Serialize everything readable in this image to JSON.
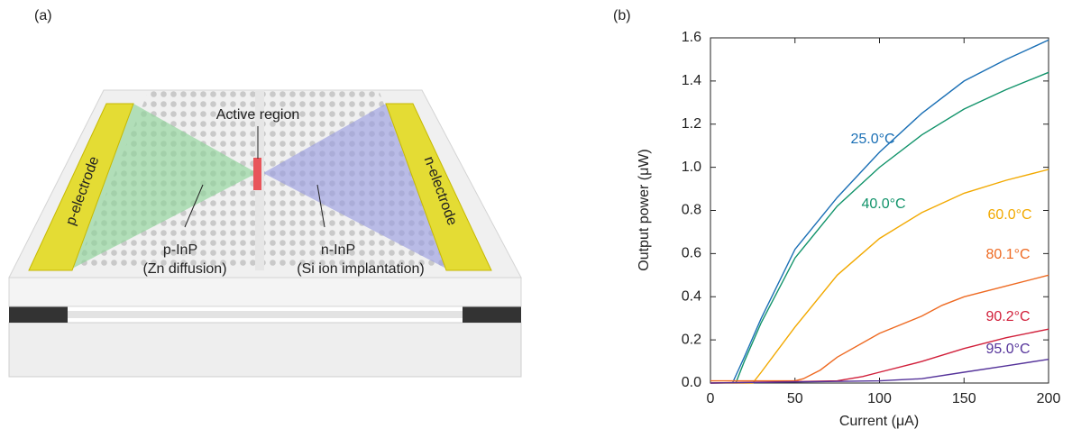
{
  "diagram": {
    "panel_label": "(a)",
    "labels": [
      "Active region",
      "p-electrode",
      "n-electrode",
      "p-InP",
      "(Zn diffusion)",
      "n-InP",
      "(Si ion implantation)"
    ]
  },
  "chart_data": {
    "type": "line",
    "panel_label": "(b)",
    "x_label": "Current (μA)",
    "y_label": "Output power (μW)",
    "xlim": [
      0,
      200
    ],
    "ylim": [
      0,
      1.6
    ],
    "xticks": [
      0,
      50,
      100,
      150,
      200
    ],
    "yticks": [
      {
        "value": 0,
        "label": "0.0"
      },
      0.2,
      0.4,
      0.6,
      0.8,
      {
        "value": 1,
        "label": "1.0"
      },
      1.2,
      1.4,
      1.6
    ],
    "series": [
      {
        "name": "25.0°C",
        "color": "#1a6fb5",
        "x": [
          13,
          20,
          30,
          50,
          75,
          100,
          125,
          150,
          175,
          200
        ],
        "values": [
          0,
          0.12,
          0.3,
          0.62,
          0.86,
          1.07,
          1.25,
          1.4,
          1.5,
          1.59
        ]
      },
      {
        "name": "40.0°C",
        "color": "#11936a",
        "x": [
          15,
          20,
          30,
          50,
          75,
          100,
          125,
          150,
          175,
          200
        ],
        "values": [
          0,
          0.1,
          0.28,
          0.58,
          0.82,
          1.0,
          1.15,
          1.27,
          1.36,
          1.44
        ]
      },
      {
        "name": "60.0°C",
        "color": "#f2a900",
        "x": [
          0,
          25,
          30,
          50,
          75,
          100,
          125,
          150,
          175,
          200
        ],
        "values": [
          0,
          0,
          0.05,
          0.26,
          0.5,
          0.67,
          0.79,
          0.88,
          0.94,
          0.99
        ]
      },
      {
        "name": "80.1°C",
        "color": "#ee6a22",
        "x": [
          0,
          50,
          55,
          65,
          75,
          100,
          125,
          137,
          150,
          175,
          200
        ],
        "values": [
          0.01,
          0.01,
          0.02,
          0.06,
          0.12,
          0.23,
          0.31,
          0.36,
          0.4,
          0.45,
          0.5
        ]
      },
      {
        "name": "90.2°C",
        "color": "#d11f3a",
        "x": [
          0,
          75,
          90,
          100,
          125,
          150,
          175,
          200
        ],
        "values": [
          0,
          0.01,
          0.03,
          0.05,
          0.1,
          0.16,
          0.21,
          0.25
        ]
      },
      {
        "name": "95.0°C",
        "color": "#55339a",
        "x": [
          0,
          100,
          125,
          150,
          175,
          200
        ],
        "values": [
          0,
          0.01,
          0.02,
          0.05,
          0.08,
          0.11
        ]
      }
    ]
  }
}
